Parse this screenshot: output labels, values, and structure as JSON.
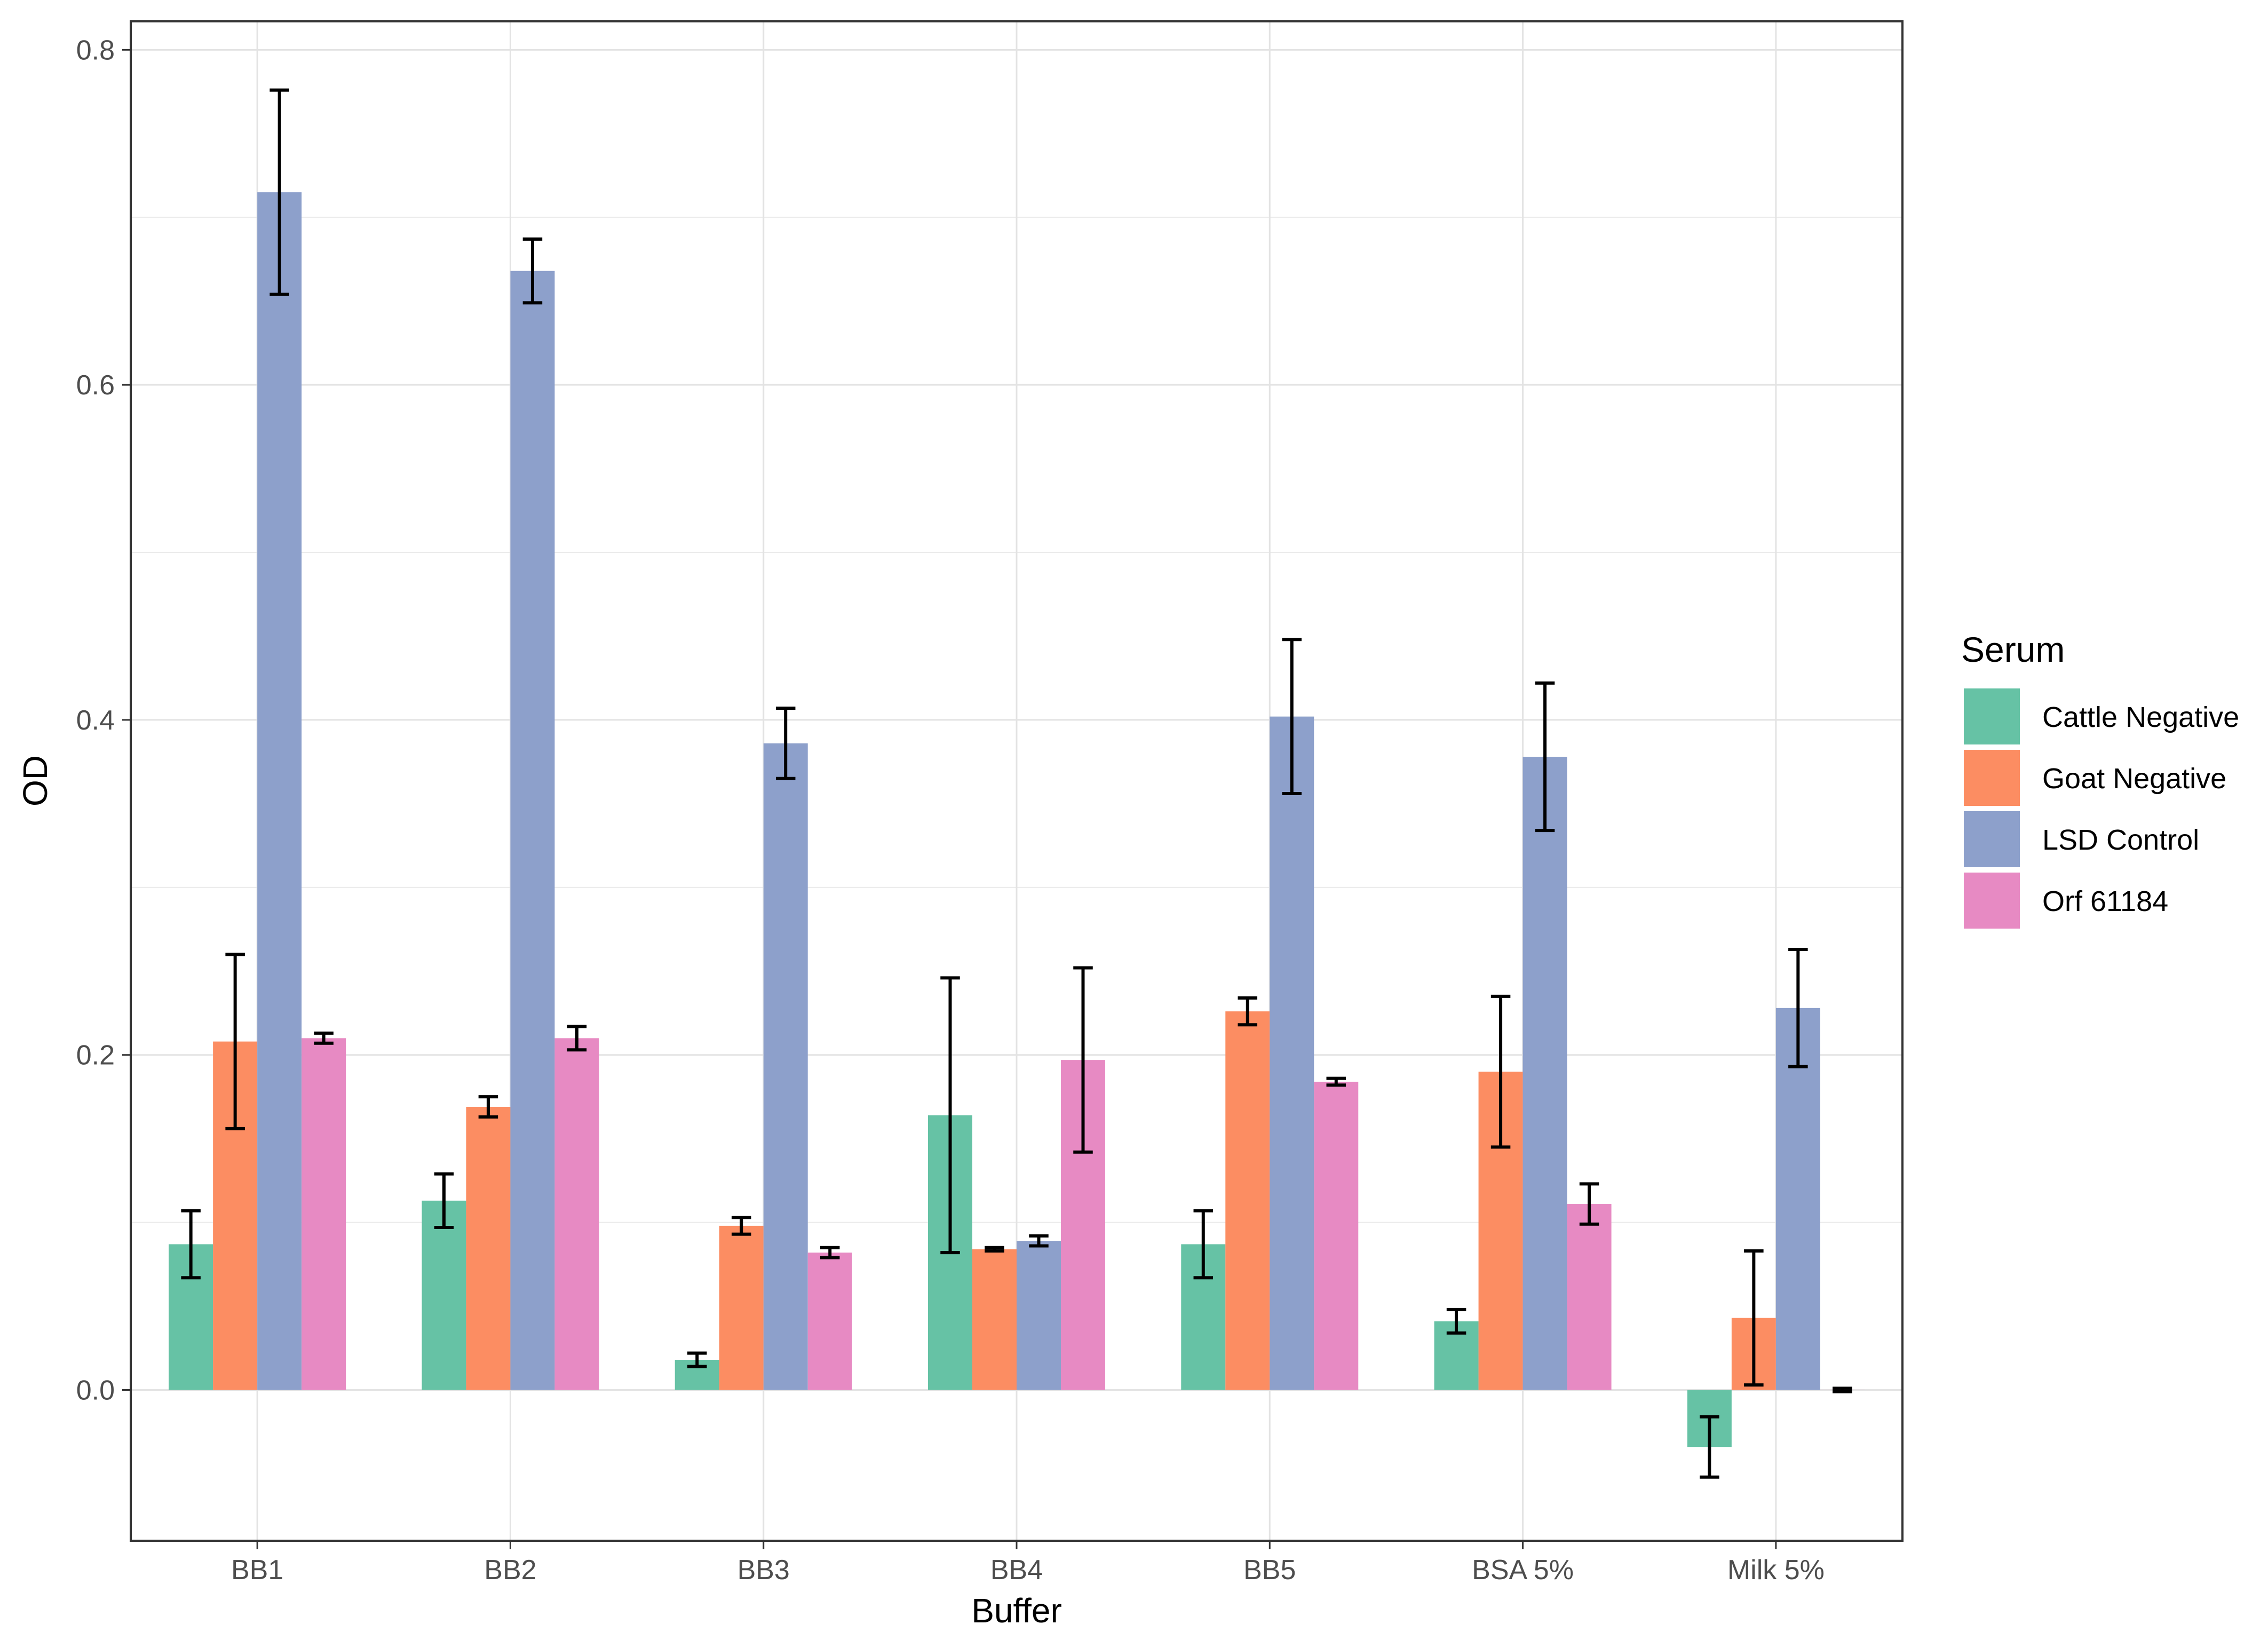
{
  "chart_data": {
    "type": "bar",
    "title": "",
    "xlabel": "Buffer",
    "ylabel": "OD",
    "ylim": [
      -0.09,
      0.817
    ],
    "yticks": [
      0.0,
      0.2,
      0.4,
      0.6,
      0.8
    ],
    "ytick_labels": [
      "0.0",
      "0.2",
      "0.4",
      "0.6",
      "0.8"
    ],
    "grid": true,
    "legend_title": "Serum",
    "legend_position": "right",
    "categories": [
      "BB1",
      "BB2",
      "BB3",
      "BB4",
      "BB5",
      "BSA 5%",
      "Milk 5%"
    ],
    "series": [
      {
        "name": "Cattle Negative",
        "color": "#66c2a5",
        "values": [
          0.087,
          0.113,
          0.018,
          0.164,
          0.087,
          0.041,
          -0.034
        ],
        "errors": [
          0.02,
          0.016,
          0.004,
          0.082,
          0.02,
          0.007,
          0.018
        ]
      },
      {
        "name": "Goat Negative",
        "color": "#fc8d62",
        "values": [
          0.208,
          0.169,
          0.098,
          0.084,
          0.226,
          0.19,
          0.043
        ],
        "errors": [
          0.052,
          0.006,
          0.005,
          0.001,
          0.008,
          0.045,
          0.04
        ]
      },
      {
        "name": "LSD Control",
        "color": "#8da0cb",
        "values": [
          0.715,
          0.668,
          0.386,
          0.089,
          0.402,
          0.378,
          0.228
        ],
        "errors": [
          0.061,
          0.019,
          0.021,
          0.003,
          0.046,
          0.044,
          0.035
        ]
      },
      {
        "name": "Orf 61184",
        "color": "#e78ac3",
        "values": [
          0.21,
          0.21,
          0.082,
          0.197,
          0.184,
          0.111,
          0.0
        ],
        "errors": [
          0.003,
          0.007,
          0.003,
          0.055,
          0.002,
          0.012,
          0.001
        ]
      }
    ]
  }
}
